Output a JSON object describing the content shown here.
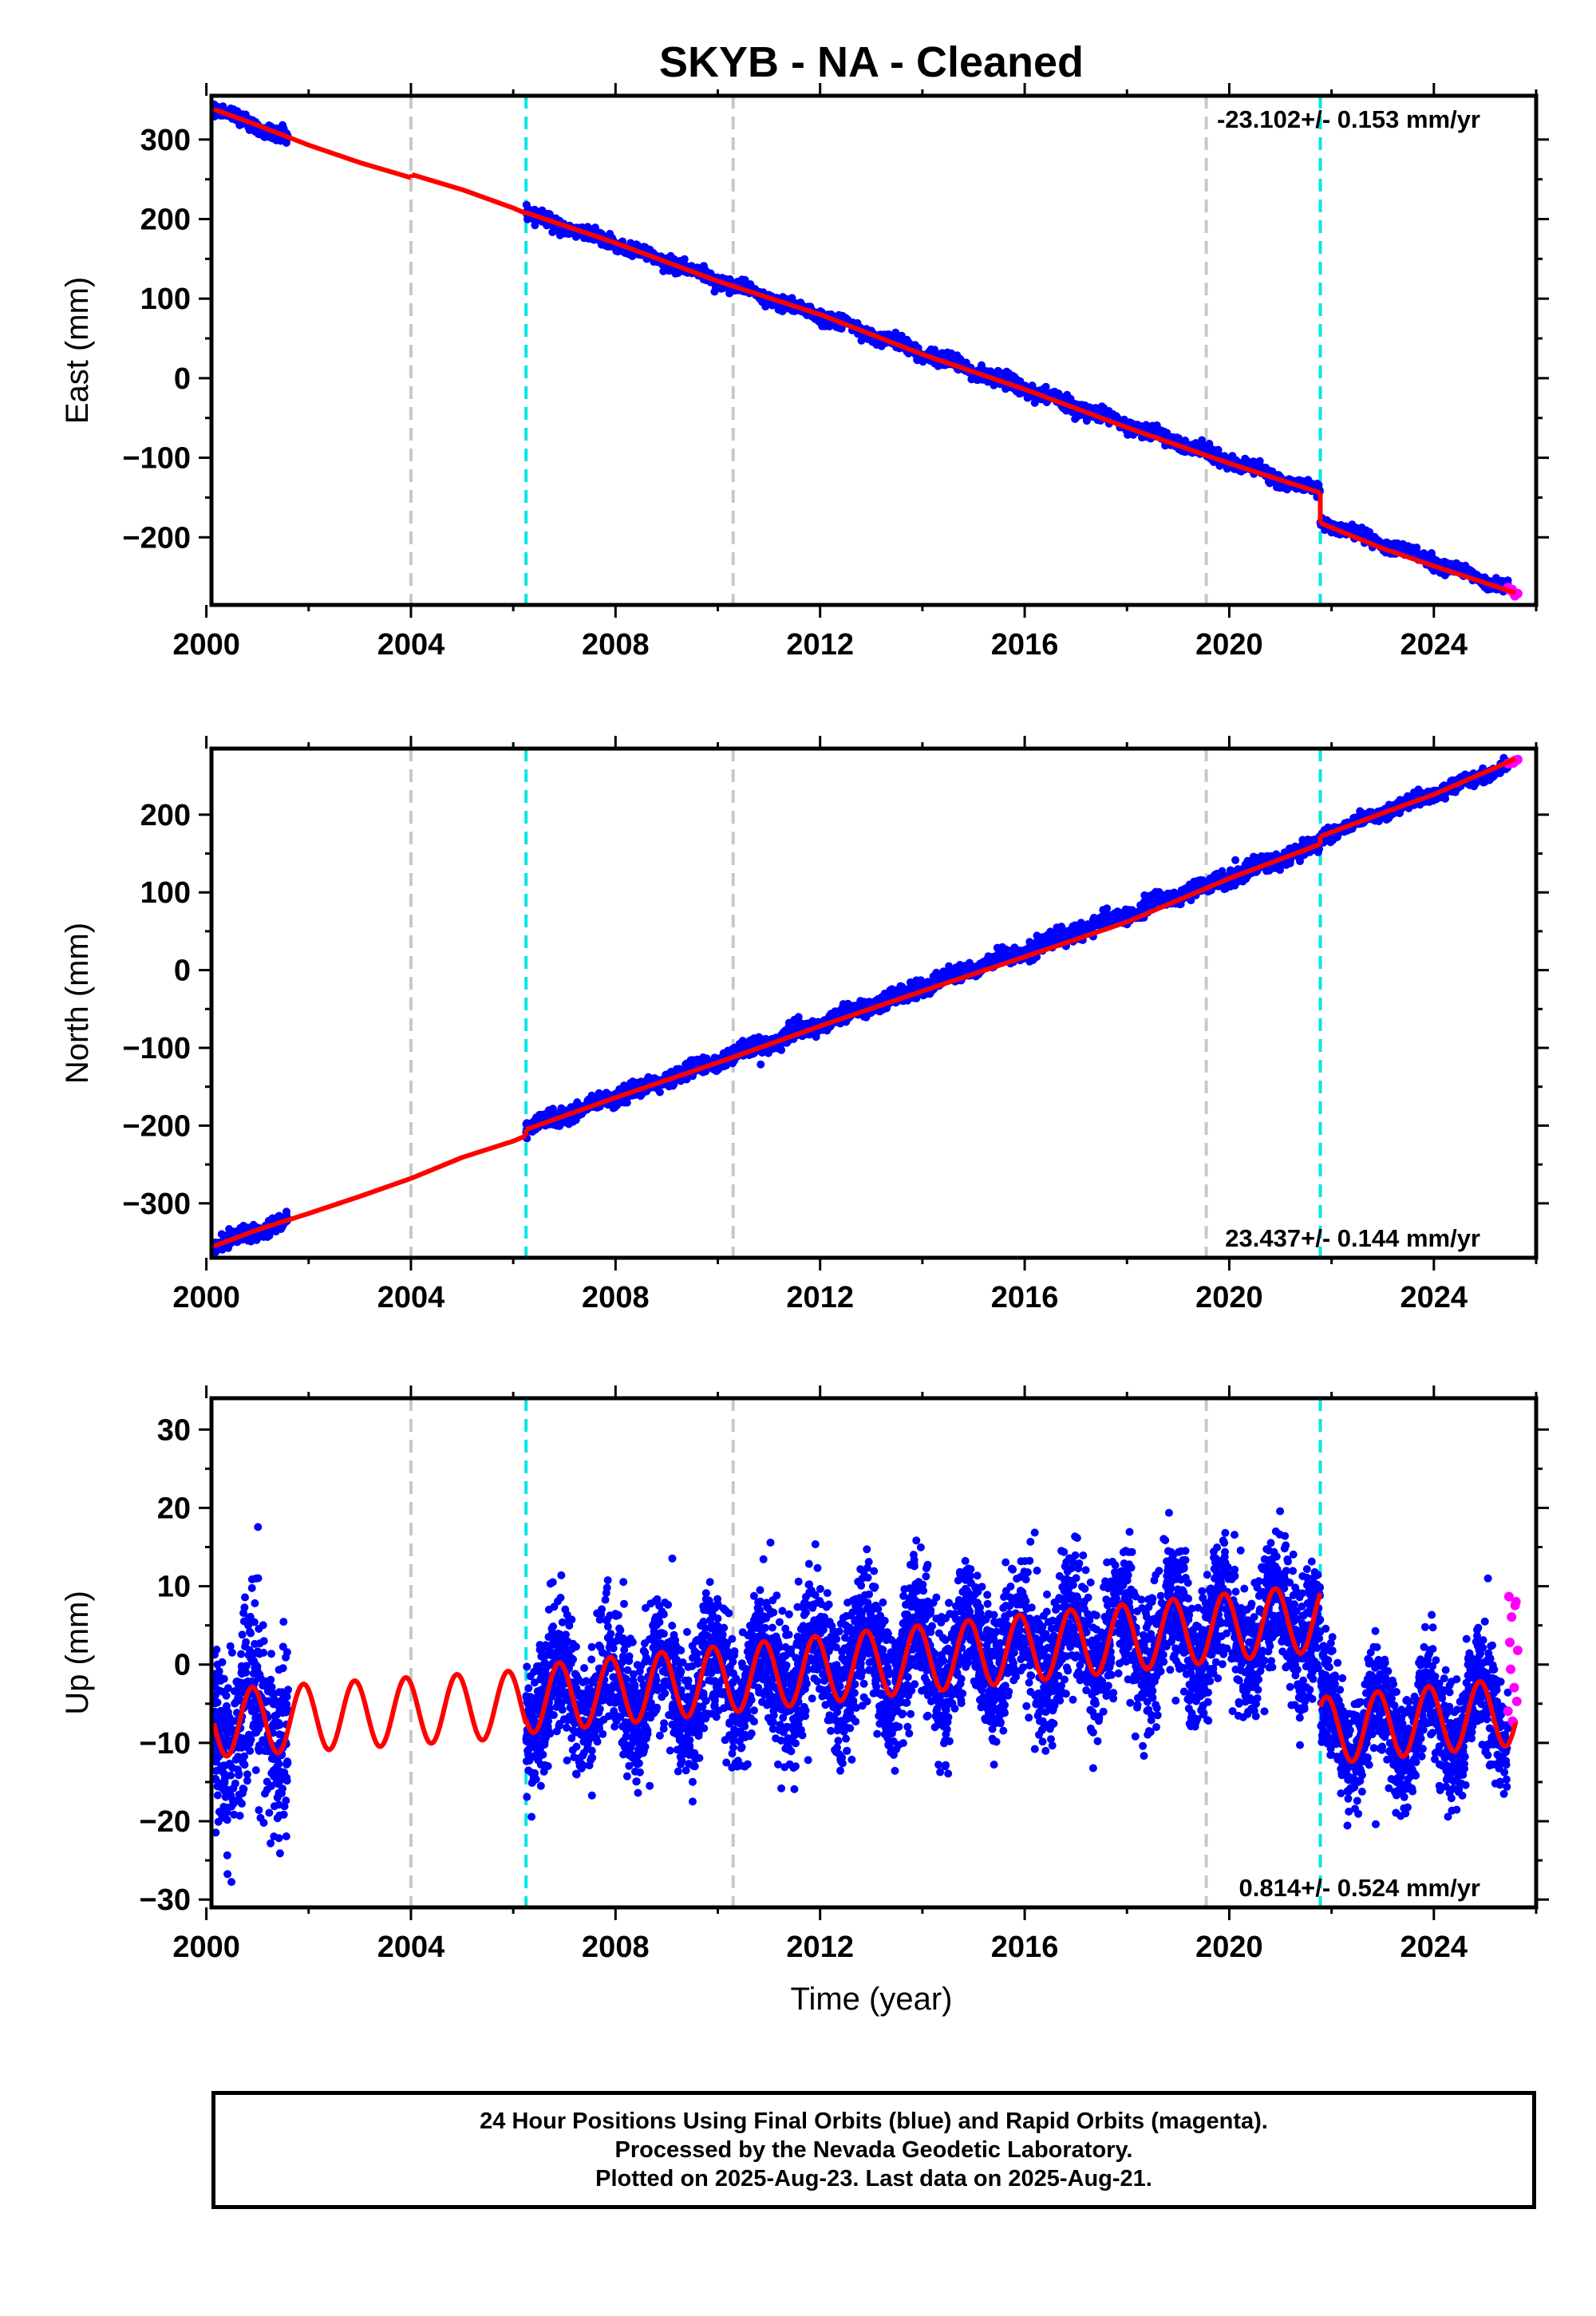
{
  "title": "SKYB  - NA - Cleaned",
  "x_axis_label": "Time (year)",
  "x_ticks": [
    "2000",
    "2004",
    "2008",
    "2012",
    "2016",
    "2020",
    "2024"
  ],
  "colors": {
    "final_orbits": "#0000ff",
    "rapid_orbits": "#ff00ff",
    "model": "#ff0000",
    "equipment_change": "#c8c8c8",
    "earthquake": "#00e5e5"
  },
  "grey_lines": [
    2004.0,
    2010.3,
    2019.55
  ],
  "cyan_lines": [
    2006.25,
    2021.78
  ],
  "chart_data": [
    {
      "type": "scatter",
      "name": "east",
      "ylabel": "East (mm)",
      "xlim": [
        2000.1,
        2026.0
      ],
      "ylim": [
        -285,
        355
      ],
      "yticks": [
        300,
        200,
        100,
        0,
        -100,
        -200
      ],
      "ytick_labels": [
        "300",
        "200",
        "100",
        "0",
        "−100",
        "−200"
      ],
      "rate_label": "-23.102+/- 0.153 mm/yr",
      "rate_position": "top-right",
      "model_segments": [
        {
          "x": [
            2000.15,
            2001.0,
            2002.0,
            2003.0,
            2004.0
          ],
          "y": [
            338,
            318,
            293,
            271,
            252
          ]
        },
        {
          "x": [
            2004.02,
            2005.0,
            2006.0,
            2006.25
          ],
          "y": [
            256,
            237,
            214,
            207
          ]
        },
        {
          "x": [
            2006.25,
            2008.0,
            2010.0,
            2012.0,
            2014.0,
            2016.0,
            2018.0,
            2020.0,
            2021.78
          ],
          "y": [
            208,
            170,
            122,
            80,
            30,
            -14,
            -62,
            -107,
            -144
          ]
        },
        {
          "x": [
            2021.78,
            2023.0,
            2024.0,
            2025.6
          ],
          "y": [
            -182,
            -214,
            -236,
            -270
          ]
        }
      ],
      "scatter_segments": [
        {
          "x0": 2000.15,
          "x1": 2001.6,
          "y0": 338,
          "y1": 301,
          "noise": 4
        },
        {
          "x0": 2006.25,
          "x1": 2021.78,
          "y0": 208,
          "y1": -144,
          "noise": 4
        },
        {
          "x0": 2021.78,
          "x1": 2025.45,
          "y0": -180,
          "y1": -264,
          "noise": 3.5
        }
      ],
      "rapid_points": {
        "x0": 2025.45,
        "x1": 2025.64,
        "y0": -265,
        "y1": -270,
        "count": 8
      }
    },
    {
      "type": "scatter",
      "name": "north",
      "ylabel": "North (mm)",
      "xlim": [
        2000.1,
        2026.0
      ],
      "ylim": [
        -370,
        285
      ],
      "yticks": [
        200,
        100,
        0,
        -100,
        -200,
        -300
      ],
      "ytick_labels": [
        "200",
        "100",
        "0",
        "−100",
        "−200",
        "−300"
      ],
      "rate_label": "23.437+/- 0.144 mm/yr",
      "rate_position": "bottom-right",
      "model_segments": [
        {
          "x": [
            2000.15,
            2001.0,
            2002.0,
            2003.0,
            2004.0
          ],
          "y": [
            -355,
            -334,
            -313,
            -291,
            -268
          ]
        },
        {
          "x": [
            2004.0,
            2005.0,
            2006.0,
            2006.25
          ],
          "y": [
            -268,
            -241,
            -220,
            -213
          ]
        },
        {
          "x": [
            2006.25,
            2008.0,
            2010.0,
            2012.0,
            2014.0,
            2016.0,
            2018.0,
            2020.0,
            2021.78
          ],
          "y": [
            -205,
            -164,
            -119,
            -72,
            -27,
            17,
            62,
            118,
            162
          ]
        },
        {
          "x": [
            2021.78,
            2023.0,
            2024.0,
            2025.6
          ],
          "y": [
            172,
            202,
            226,
            272
          ]
        }
      ],
      "scatter_segments": [
        {
          "x0": 2000.15,
          "x1": 2001.6,
          "y0": -355,
          "y1": -322,
          "noise": 5
        },
        {
          "x0": 2006.25,
          "x1": 2021.78,
          "y0": -205,
          "y1": 162,
          "noise": 5
        },
        {
          "x0": 2021.78,
          "x1": 2025.45,
          "y0": 172,
          "y1": 263,
          "noise": 4
        }
      ],
      "rapid_points": {
        "x0": 2025.45,
        "x1": 2025.64,
        "y0": 264,
        "y1": 272,
        "count": 8
      }
    },
    {
      "type": "scatter",
      "name": "up",
      "ylabel": "Up (mm)",
      "xlim": [
        2000.1,
        2026.0
      ],
      "ylim": [
        -31,
        34
      ],
      "yticks": [
        30,
        20,
        10,
        0,
        -10,
        -20,
        -30
      ],
      "ytick_labels": [
        "30",
        "20",
        "10",
        "0",
        "−10",
        "−20",
        "−30"
      ],
      "rate_label": "0.814+/- 0.524 mm/yr",
      "rate_position": "bottom-right",
      "seasonal": {
        "amplitude": 4.3,
        "phase_year": 2000.9
      },
      "model_segments": [
        {
          "x0": 2000.15,
          "x1": 2006.25,
          "mean_start": -7.5,
          "mean_end": -5.0
        },
        {
          "x0": 2006.25,
          "x1": 2021.78,
          "mean_start": -4.5,
          "mean_end": 6.0
        },
        {
          "x0": 2021.78,
          "x1": 2025.6,
          "mean_start": -8.5,
          "mean_end": -6.0
        }
      ],
      "scatter_segments": [
        {
          "x0": 2000.15,
          "x1": 2001.6,
          "noise": 6
        },
        {
          "x0": 2006.25,
          "x1": 2021.78,
          "noise": 4.2
        },
        {
          "x0": 2021.78,
          "x1": 2025.45,
          "noise": 3.5
        }
      ],
      "rapid_points": {
        "x0": 2025.45,
        "x1": 2025.64,
        "ymin": -8,
        "ymax": 9,
        "count": 12
      }
    }
  ],
  "footer": {
    "line1": "24 Hour Positions Using Final Orbits (blue) and Rapid Orbits (magenta).",
    "line2": "Processed by the Nevada Geodetic Laboratory.",
    "line3": "Plotted on 2025-Aug-23. Last data on 2025-Aug-21."
  }
}
